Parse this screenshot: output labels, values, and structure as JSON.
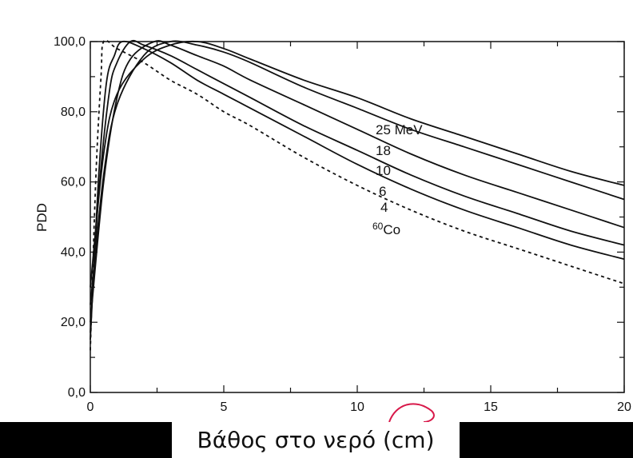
{
  "caption": "Βάθος στο νερό (cm)",
  "chart_data": {
    "type": "line",
    "title": "",
    "xlabel": "",
    "ylabel": "PDD",
    "xlim": [
      0,
      20
    ],
    "ylim": [
      0,
      100
    ],
    "x_ticks": [
      "0",
      "5",
      "10",
      "15",
      "20"
    ],
    "y_ticks": [
      "0,0",
      "20,0",
      "40,0",
      "60,0",
      "80,0",
      "100,0"
    ],
    "grid": false,
    "legend": "inline labels",
    "series": [
      {
        "name": "25 MeV",
        "dash": false,
        "points": [
          [
            0,
            30
          ],
          [
            0.5,
            68
          ],
          [
            1,
            85
          ],
          [
            2,
            95
          ],
          [
            3,
            99
          ],
          [
            4,
            100
          ],
          [
            5,
            98
          ],
          [
            6,
            95
          ],
          [
            8,
            89
          ],
          [
            10,
            84
          ],
          [
            12,
            78
          ],
          [
            14,
            73
          ],
          [
            16,
            68
          ],
          [
            18,
            63
          ],
          [
            20,
            59
          ]
        ]
      },
      {
        "name": "18",
        "dash": false,
        "points": [
          [
            0,
            25
          ],
          [
            0.5,
            62
          ],
          [
            1,
            82
          ],
          [
            2,
            96
          ],
          [
            3,
            100
          ],
          [
            4,
            99
          ],
          [
            5,
            97
          ],
          [
            6,
            94
          ],
          [
            8,
            87
          ],
          [
            10,
            81
          ],
          [
            12,
            75
          ],
          [
            14,
            70
          ],
          [
            16,
            65
          ],
          [
            18,
            60
          ],
          [
            20,
            55
          ]
        ]
      },
      {
        "name": "10",
        "dash": false,
        "points": [
          [
            0,
            20
          ],
          [
            0.5,
            60
          ],
          [
            1,
            84
          ],
          [
            1.5,
            95
          ],
          [
            2.4,
            100
          ],
          [
            3,
            99
          ],
          [
            4,
            96
          ],
          [
            5,
            93
          ],
          [
            6,
            89
          ],
          [
            8,
            82
          ],
          [
            10,
            75
          ],
          [
            12,
            68
          ],
          [
            14,
            62
          ],
          [
            16,
            57
          ],
          [
            18,
            52
          ],
          [
            20,
            47
          ]
        ]
      },
      {
        "name": "6",
        "dash": false,
        "points": [
          [
            0,
            17
          ],
          [
            0.3,
            55
          ],
          [
            0.7,
            85
          ],
          [
            1,
            94
          ],
          [
            1.5,
            100
          ],
          [
            2,
            99
          ],
          [
            3,
            96
          ],
          [
            4,
            92
          ],
          [
            5,
            88
          ],
          [
            6,
            84
          ],
          [
            8,
            76
          ],
          [
            10,
            69
          ],
          [
            12,
            62
          ],
          [
            14,
            56
          ],
          [
            16,
            51
          ],
          [
            18,
            46
          ],
          [
            20,
            42
          ]
        ]
      },
      {
        "name": "4",
        "dash": false,
        "points": [
          [
            0,
            15
          ],
          [
            0.3,
            60
          ],
          [
            0.6,
            88
          ],
          [
            0.9,
            96
          ],
          [
            1.2,
            100
          ],
          [
            2,
            98
          ],
          [
            3,
            94
          ],
          [
            4,
            89
          ],
          [
            5,
            85
          ],
          [
            6,
            81
          ],
          [
            8,
            73
          ],
          [
            10,
            65
          ],
          [
            12,
            58
          ],
          [
            14,
            52
          ],
          [
            16,
            47
          ],
          [
            18,
            42
          ],
          [
            20,
            38
          ]
        ]
      },
      {
        "name": "60Co",
        "dash": true,
        "points": [
          [
            0,
            12
          ],
          [
            0.2,
            60
          ],
          [
            0.4,
            90
          ],
          [
            0.5,
            100
          ],
          [
            1,
            98
          ],
          [
            2,
            94
          ],
          [
            3,
            89
          ],
          [
            4,
            85
          ],
          [
            5,
            80
          ],
          [
            6,
            76
          ],
          [
            8,
            67
          ],
          [
            10,
            59
          ],
          [
            12,
            52
          ],
          [
            14,
            46
          ],
          [
            16,
            41
          ],
          [
            18,
            36
          ],
          [
            20,
            31
          ]
        ]
      }
    ],
    "colors": {
      "line": "#111111",
      "ink": "#d8194a"
    }
  }
}
